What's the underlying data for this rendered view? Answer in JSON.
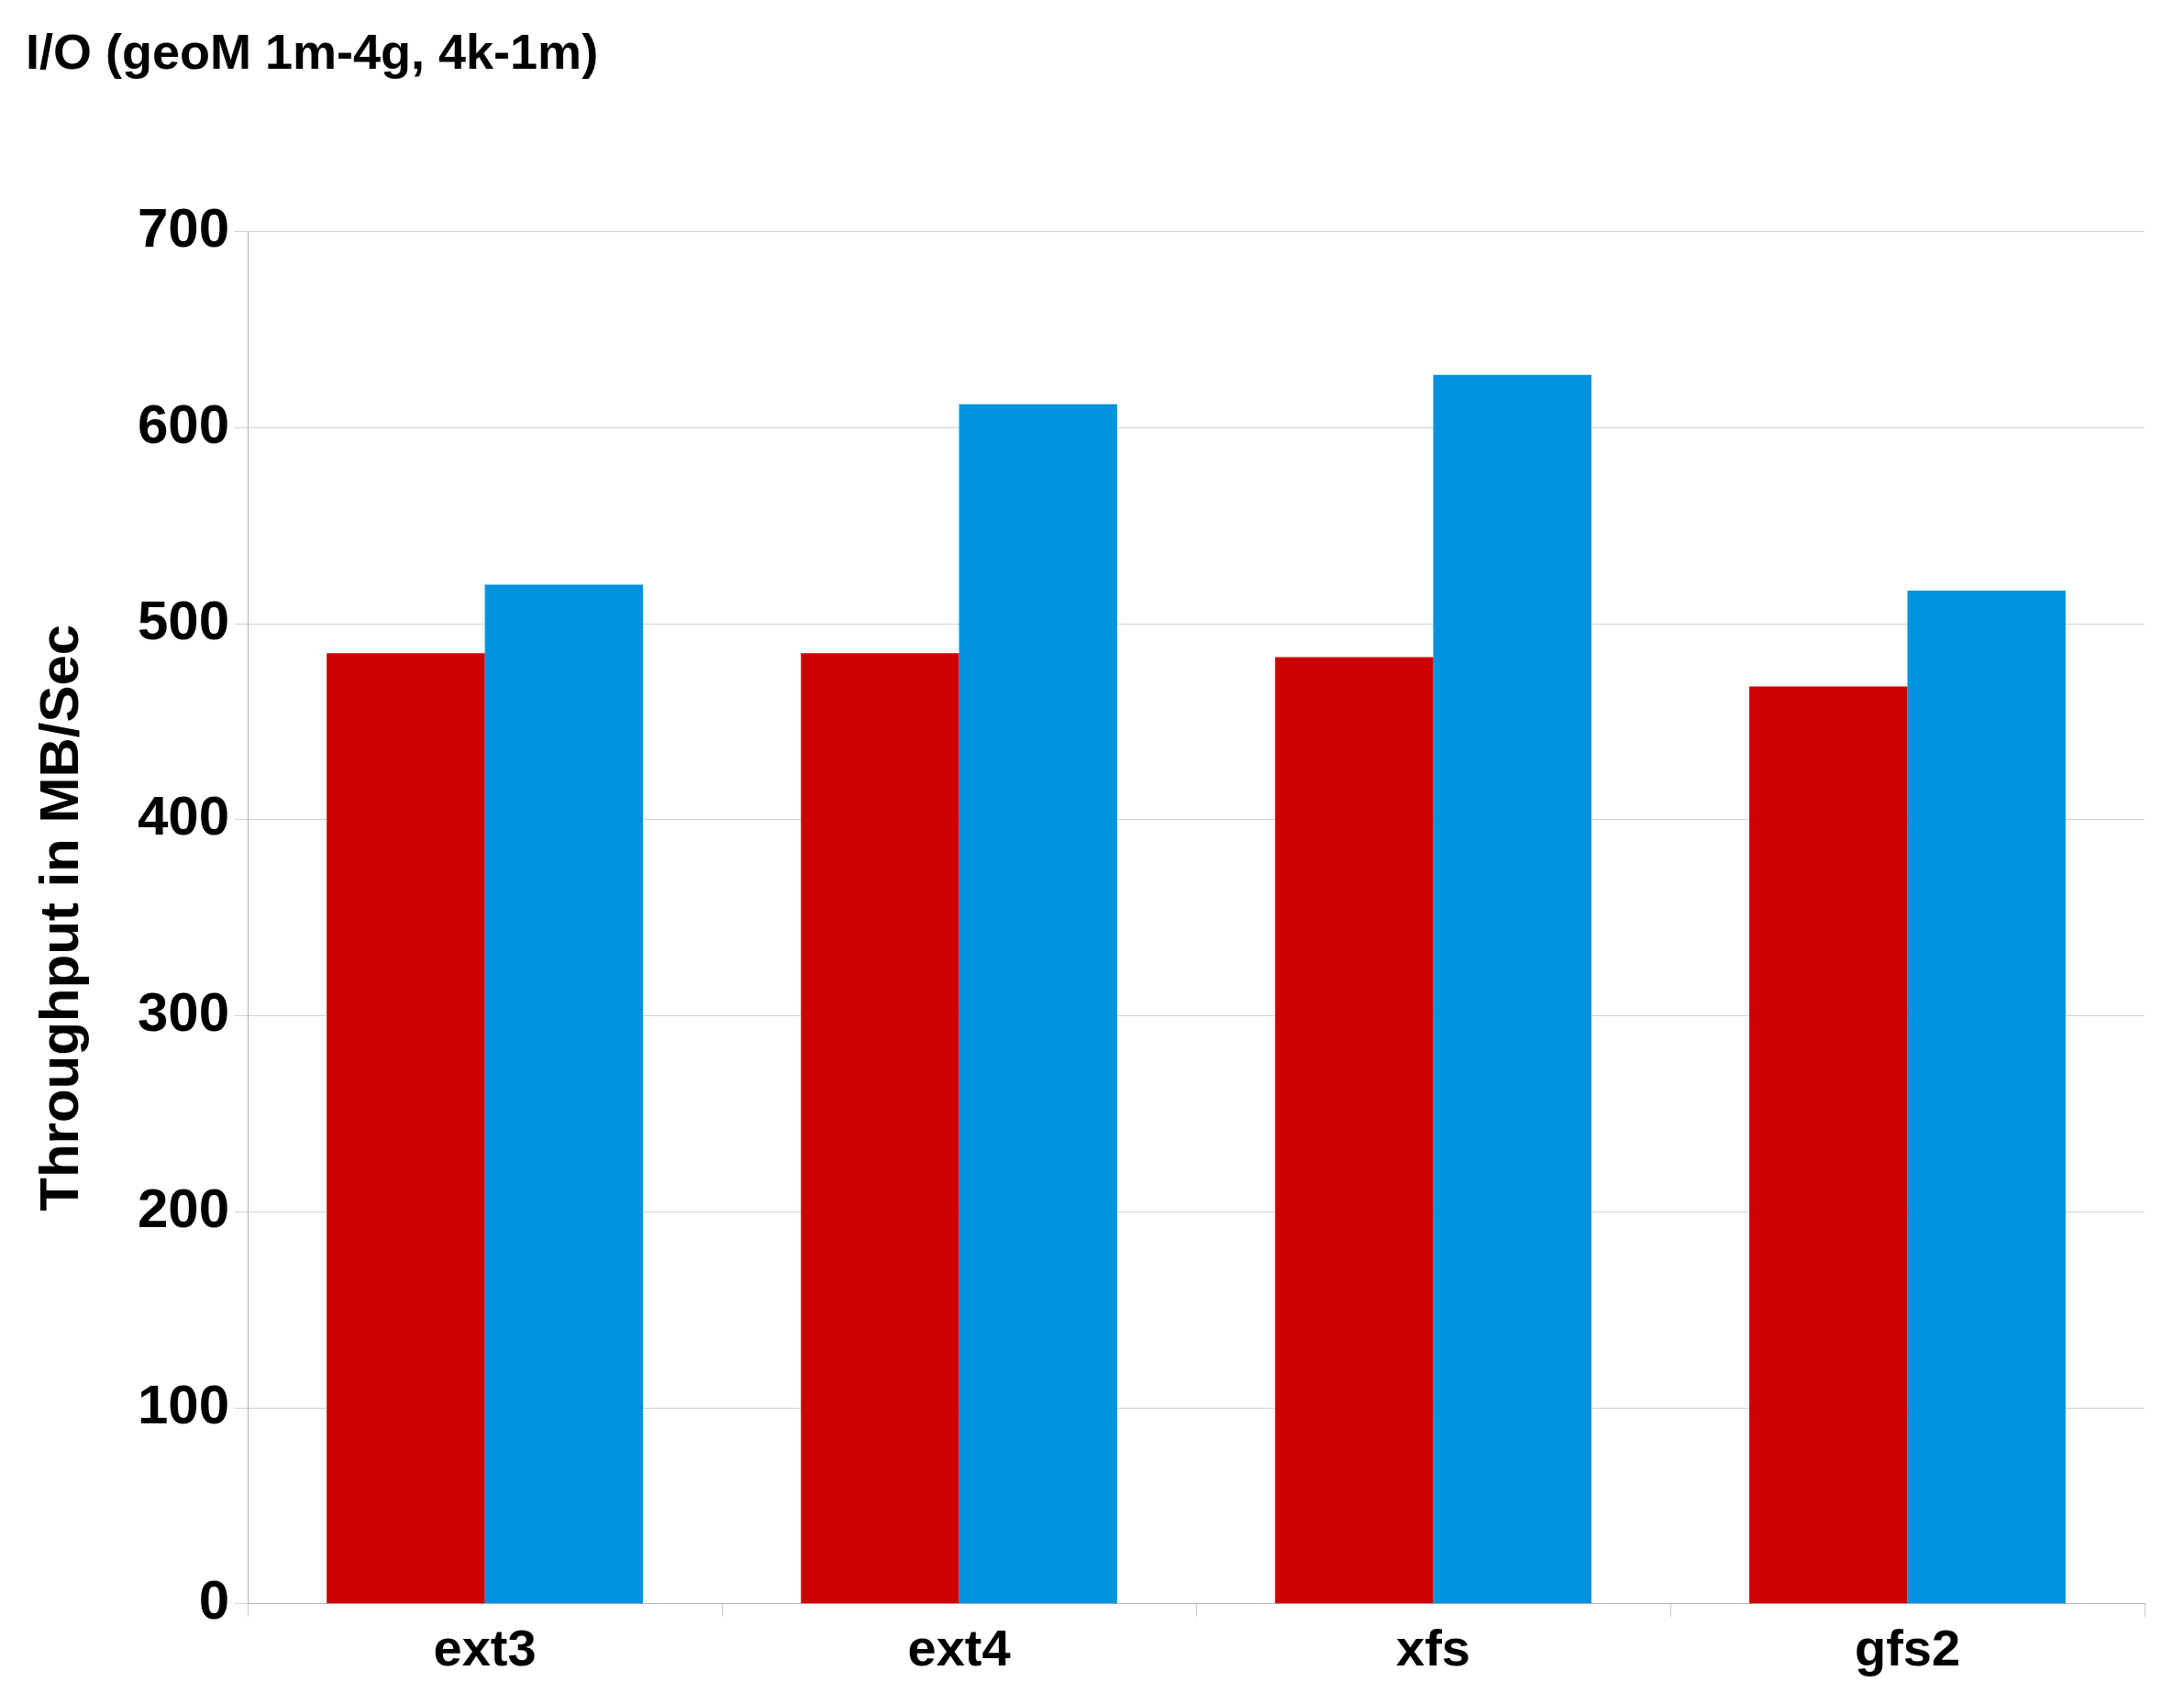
{
  "chart_data": {
    "type": "bar",
    "title": "I/O (geoM 1m-4g, 4k-1m)",
    "ylabel": "Throughput in MB/Sec",
    "categories": [
      "ext3",
      "ext4",
      "xfs",
      "gfs2"
    ],
    "series": [
      {
        "color": "#cc0000",
        "values": [
          485,
          485,
          483,
          468
        ]
      },
      {
        "color": "#0093dd",
        "values": [
          520,
          612,
          627,
          517
        ]
      }
    ],
    "ylim": [
      0,
      700
    ],
    "yticks": [
      0,
      100,
      200,
      300,
      400,
      500,
      600,
      700
    ],
    "grid": "y",
    "legend": false
  }
}
